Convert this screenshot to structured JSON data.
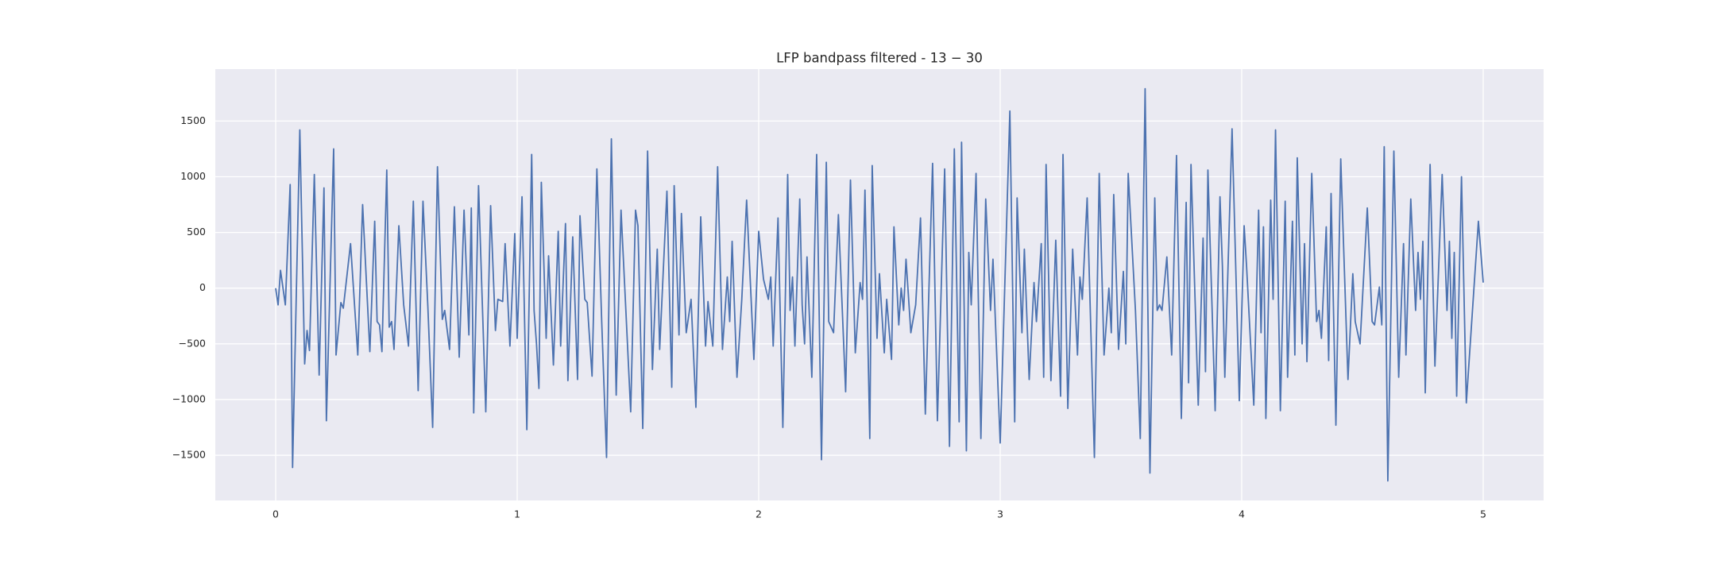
{
  "chart_data": {
    "type": "line",
    "title": "LFP bandpass filtered - 13 − 30",
    "color": "#4c72b0",
    "grid": true,
    "xlim": [
      -0.25,
      5.25
    ],
    "xticks": [
      0,
      1,
      2,
      3,
      4,
      5
    ],
    "ylim": [
      -1906,
      1966
    ],
    "yticks": [
      {
        "value": -1500,
        "label": "−1500"
      },
      {
        "value": -1000,
        "label": "−1000"
      },
      {
        "value": -500,
        "label": "−500"
      },
      0,
      500,
      1000,
      1500
    ],
    "x": [
      0.0,
      0.01,
      0.02,
      0.04,
      0.06,
      0.07,
      0.1,
      0.12,
      0.13,
      0.14,
      0.16,
      0.18,
      0.2,
      0.21,
      0.24,
      0.25,
      0.27,
      0.28,
      0.31,
      0.34,
      0.36,
      0.39,
      0.41,
      0.42,
      0.43,
      0.44,
      0.46,
      0.47,
      0.48,
      0.49,
      0.51,
      0.53,
      0.55,
      0.57,
      0.59,
      0.61,
      0.63,
      0.65,
      0.67,
      0.69,
      0.7,
      0.72,
      0.74,
      0.76,
      0.78,
      0.8,
      0.81,
      0.82,
      0.84,
      0.87,
      0.89,
      0.91,
      0.92,
      0.94,
      0.95,
      0.97,
      0.99,
      1.0,
      1.02,
      1.04,
      1.06,
      1.07,
      1.08,
      1.09,
      1.1,
      1.12,
      1.13,
      1.15,
      1.17,
      1.18,
      1.2,
      1.21,
      1.23,
      1.25,
      1.26,
      1.28,
      1.29,
      1.31,
      1.33,
      1.35,
      1.37,
      1.39,
      1.41,
      1.43,
      1.45,
      1.47,
      1.49,
      1.5,
      1.52,
      1.54,
      1.56,
      1.58,
      1.59,
      1.62,
      1.64,
      1.65,
      1.67,
      1.68,
      1.7,
      1.72,
      1.74,
      1.76,
      1.78,
      1.79,
      1.81,
      1.83,
      1.85,
      1.87,
      1.88,
      1.89,
      1.91,
      1.93,
      1.95,
      1.98,
      2.0,
      2.02,
      2.04,
      2.05,
      2.06,
      2.08,
      2.1,
      2.12,
      2.13,
      2.14,
      2.15,
      2.17,
      2.18,
      2.19,
      2.2,
      2.22,
      2.24,
      2.26,
      2.28,
      2.29,
      2.31,
      2.33,
      2.36,
      2.38,
      2.4,
      2.42,
      2.43,
      2.44,
      2.46,
      2.47,
      2.49,
      2.5,
      2.52,
      2.53,
      2.55,
      2.56,
      2.58,
      2.59,
      2.6,
      2.61,
      2.63,
      2.65,
      2.67,
      2.69,
      2.72,
      2.74,
      2.77,
      2.79,
      2.81,
      2.83,
      2.84,
      2.86,
      2.87,
      2.88,
      2.9,
      2.92,
      2.94,
      2.96,
      2.97,
      3.0,
      3.04,
      3.06,
      3.07,
      3.09,
      3.1,
      3.12,
      3.14,
      3.15,
      3.17,
      3.18,
      3.19,
      3.21,
      3.23,
      3.25,
      3.26,
      3.28,
      3.3,
      3.32,
      3.33,
      3.34,
      3.36,
      3.39,
      3.41,
      3.43,
      3.45,
      3.46,
      3.47,
      3.49,
      3.51,
      3.52,
      3.53,
      3.56,
      3.58,
      3.6,
      3.62,
      3.64,
      3.65,
      3.66,
      3.67,
      3.69,
      3.71,
      3.73,
      3.75,
      3.77,
      3.78,
      3.79,
      3.82,
      3.84,
      3.85,
      3.86,
      3.89,
      3.91,
      3.92,
      3.93,
      3.96,
      3.99,
      4.01,
      4.02,
      4.05,
      4.07,
      4.08,
      4.09,
      4.1,
      4.12,
      4.13,
      4.14,
      4.16,
      4.18,
      4.19,
      4.21,
      4.22,
      4.23,
      4.25,
      4.26,
      4.27,
      4.29,
      4.31,
      4.32,
      4.33,
      4.35,
      4.36,
      4.37,
      4.39,
      4.41,
      4.44,
      4.46,
      4.47,
      4.49,
      4.52,
      4.54,
      4.55,
      4.57,
      4.58,
      4.59,
      4.605,
      4.63,
      4.65,
      4.67,
      4.68,
      4.7,
      4.72,
      4.73,
      4.74,
      4.75,
      4.76,
      4.78,
      4.8,
      4.83,
      4.85,
      4.86,
      4.87,
      4.88,
      4.89,
      4.91,
      4.93,
      4.98,
      5.0
    ],
    "values": [
      0,
      -150,
      160,
      -150,
      930,
      -1610,
      1420,
      -680,
      -380,
      -560,
      1020,
      -780,
      900,
      -1190,
      1250,
      -600,
      -130,
      -180,
      400,
      -600,
      750,
      -570,
      600,
      -300,
      -330,
      -570,
      1060,
      -350,
      -300,
      -550,
      560,
      -150,
      -520,
      780,
      -920,
      780,
      -160,
      -1250,
      1090,
      -280,
      -200,
      -550,
      730,
      -620,
      700,
      -420,
      720,
      -1120,
      920,
      -1110,
      740,
      -380,
      -100,
      -120,
      400,
      -520,
      490,
      -450,
      820,
      -1270,
      1200,
      -200,
      -500,
      -900,
      950,
      -450,
      290,
      -690,
      510,
      -520,
      580,
      -830,
      460,
      -820,
      650,
      -100,
      -130,
      -790,
      1070,
      -300,
      -1520,
      1340,
      -960,
      700,
      -200,
      -1110,
      700,
      560,
      -1260,
      1230,
      -730,
      350,
      -550,
      870,
      -890,
      920,
      -420,
      670,
      -400,
      -100,
      -1070,
      640,
      -520,
      -120,
      -520,
      1090,
      -550,
      100,
      -300,
      420,
      -800,
      -100,
      790,
      -640,
      510,
      80,
      -100,
      100,
      -520,
      630,
      -1250,
      1020,
      -200,
      100,
      -520,
      800,
      -150,
      -500,
      280,
      -800,
      1200,
      -1540,
      1130,
      -300,
      -400,
      660,
      -930,
      970,
      -580,
      50,
      -100,
      880,
      -1350,
      1100,
      -450,
      130,
      -580,
      -100,
      -640,
      550,
      -330,
      0,
      -200,
      260,
      -400,
      -150,
      630,
      -1130,
      1120,
      -1190,
      1070,
      -1420,
      1250,
      -1200,
      1310,
      -1460,
      320,
      -150,
      1030,
      -1350,
      800,
      -200,
      260,
      -1390,
      1590,
      -1200,
      810,
      -400,
      350,
      -820,
      50,
      -300,
      400,
      -800,
      1110,
      -830,
      430,
      -970,
      1200,
      -1080,
      350,
      -600,
      100,
      -100,
      810,
      -1520,
      1030,
      -600,
      0,
      -400,
      840,
      -550,
      150,
      -500,
      1030,
      -200,
      -1350,
      1790,
      -1660,
      810,
      -200,
      -150,
      -200,
      280,
      -600,
      1190,
      -1170,
      770,
      -850,
      1110,
      -1050,
      450,
      -750,
      1060,
      -1100,
      820,
      200,
      -800,
      1430,
      -1010,
      560,
      200,
      -1050,
      700,
      -400,
      550,
      -1170,
      790,
      -100,
      1420,
      -1100,
      780,
      -800,
      600,
      -600,
      1170,
      -500,
      400,
      -660,
      1030,
      -300,
      -200,
      -450,
      550,
      -650,
      850,
      -1230,
      1160,
      -820,
      130,
      -300,
      -500,
      720,
      -300,
      -330,
      10,
      -330,
      1270,
      -1730,
      1230,
      -800,
      400,
      -600,
      800,
      -200,
      320,
      -100,
      420,
      -940,
      1110,
      -700,
      1020,
      -200,
      420,
      -450,
      320,
      -970,
      1000,
      -1030,
      600,
      50
    ]
  }
}
